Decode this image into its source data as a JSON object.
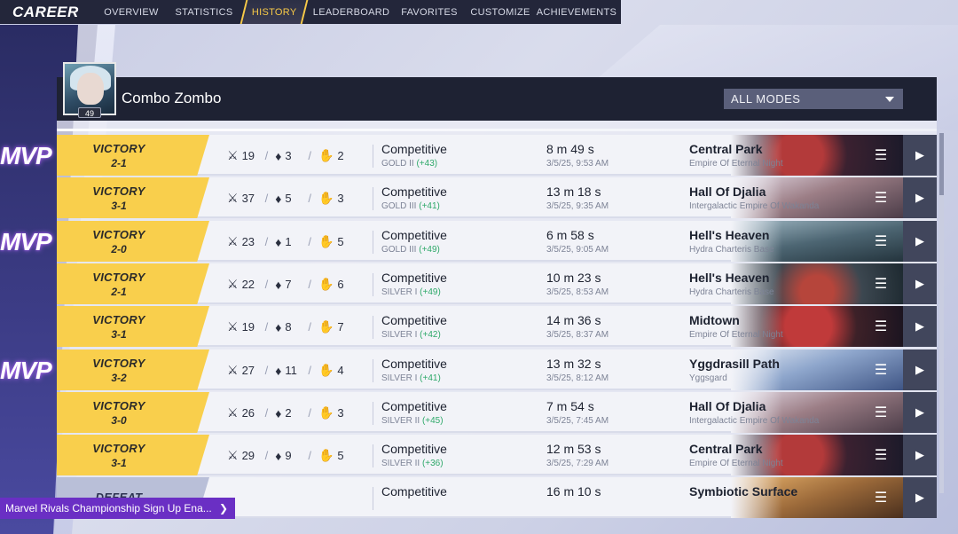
{
  "nav": {
    "brand": "CAREER",
    "tabs": [
      {
        "label": "OVERVIEW"
      },
      {
        "label": "STATISTICS"
      },
      {
        "label": "HISTORY"
      },
      {
        "label": "LEADERBOARD"
      },
      {
        "label": "FAVORITES"
      },
      {
        "label": "CUSTOMIZE"
      },
      {
        "label": "ACHIEVEMENTS"
      }
    ],
    "active_tab": "HISTORY"
  },
  "profile": {
    "name": "Combo Zombo",
    "level": "49"
  },
  "filter": {
    "mode_value": "ALL MODES"
  },
  "icons": {
    "kills": "crossed-swords-icon",
    "deaths": "broken-heart-icon",
    "assists": "helping-hand-icon",
    "menu": "hamburger-menu-icon",
    "replay": "play-icon"
  },
  "colors": {
    "victory": "#f9cf4c",
    "defeat": "#b9bfd8",
    "gain": "#2fa96a",
    "mvp_glow": "#b26cf2",
    "history_tab_accent": "#f7c948"
  },
  "matches": [
    {
      "mvp": "MVP",
      "result": "VICTORY",
      "score": "2-1",
      "kills": "19",
      "deaths": "3",
      "assists": "2",
      "mode": "Competitive",
      "rank": "GOLD II",
      "gain": "(+43)",
      "duration": "8 m 49 s",
      "datetime": "3/5/25, 9:53 AM",
      "map": "Central Park",
      "region": "Empire Of Eternal Night"
    },
    {
      "mvp": "",
      "result": "VICTORY",
      "score": "3-1",
      "kills": "37",
      "deaths": "5",
      "assists": "3",
      "mode": "Competitive",
      "rank": "GOLD III",
      "gain": "(+41)",
      "duration": "13 m 18 s",
      "datetime": "3/5/25, 9:35 AM",
      "map": "Hall Of Djalia",
      "region": "Intergalactic Empire Of Wakanda"
    },
    {
      "mvp": "MVP",
      "result": "VICTORY",
      "score": "2-0",
      "kills": "23",
      "deaths": "1",
      "assists": "5",
      "mode": "Competitive",
      "rank": "GOLD III",
      "gain": "(+49)",
      "duration": "6 m 58 s",
      "datetime": "3/5/25, 9:05 AM",
      "map": "Hell's Heaven",
      "region": "Hydra Charteris Base"
    },
    {
      "mvp": "",
      "result": "VICTORY",
      "score": "2-1",
      "kills": "22",
      "deaths": "7",
      "assists": "6",
      "mode": "Competitive",
      "rank": "SILVER I",
      "gain": "(+49)",
      "duration": "10 m 23 s",
      "datetime": "3/5/25, 8:53 AM",
      "map": "Hell's Heaven",
      "region": "Hydra Charteris Base"
    },
    {
      "mvp": "",
      "result": "VICTORY",
      "score": "3-1",
      "kills": "19",
      "deaths": "8",
      "assists": "7",
      "mode": "Competitive",
      "rank": "SILVER I",
      "gain": "(+42)",
      "duration": "14 m 36 s",
      "datetime": "3/5/25, 8:37 AM",
      "map": "Midtown",
      "region": "Empire Of Eternal Night"
    },
    {
      "mvp": "MVP",
      "result": "VICTORY",
      "score": "3-2",
      "kills": "27",
      "deaths": "11",
      "assists": "4",
      "mode": "Competitive",
      "rank": "SILVER I",
      "gain": "(+41)",
      "duration": "13 m 32 s",
      "datetime": "3/5/25, 8:12 AM",
      "map": "Yggdrasill Path",
      "region": "Yggsgard"
    },
    {
      "mvp": "",
      "result": "VICTORY",
      "score": "3-0",
      "kills": "26",
      "deaths": "2",
      "assists": "3",
      "mode": "Competitive",
      "rank": "SILVER II",
      "gain": "(+45)",
      "duration": "7 m 54 s",
      "datetime": "3/5/25, 7:45 AM",
      "map": "Hall Of Djalia",
      "region": "Intergalactic Empire Of Wakanda"
    },
    {
      "mvp": "",
      "result": "VICTORY",
      "score": "3-1",
      "kills": "29",
      "deaths": "9",
      "assists": "5",
      "mode": "Competitive",
      "rank": "SILVER II",
      "gain": "(+36)",
      "duration": "12 m 53 s",
      "datetime": "3/5/25, 7:29 AM",
      "map": "Central Park",
      "region": "Empire Of Eternal Night"
    },
    {
      "mvp": "",
      "result": "DEFEAT",
      "score": "",
      "kills": "",
      "deaths": "",
      "assists": "",
      "mode": "Competitive",
      "rank": "",
      "gain": "",
      "duration": "16 m 10 s",
      "datetime": "",
      "map": "Symbiotic Surface",
      "region": ""
    }
  ],
  "toast": {
    "text": "Marvel Rivals Championship Sign Up Ena..."
  }
}
